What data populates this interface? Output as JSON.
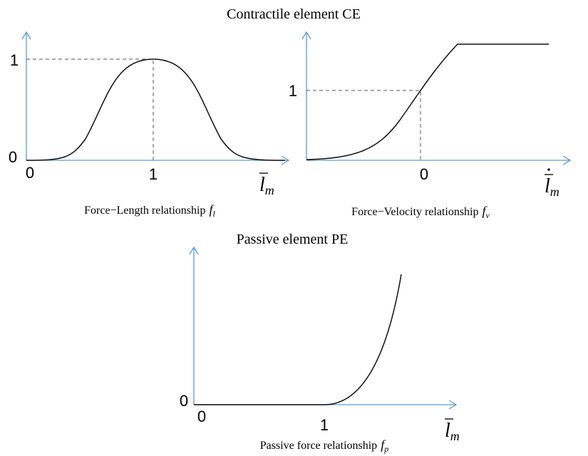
{
  "titles": [
    "Contractile element CE",
    "Passive element PE"
  ],
  "panels": [
    {
      "y_ticks": [
        "1",
        "0"
      ],
      "x_ticks": [
        "0",
        "1"
      ],
      "axis_label": {
        "base": "l",
        "sub": "m"
      },
      "caption": {
        "text": "Force−Length relationship",
        "symbol": "f",
        "sub": "l"
      }
    },
    {
      "y_ticks": [
        "1"
      ],
      "x_ticks": [
        "0"
      ],
      "axis_label": {
        "base": "l",
        "sub": "m"
      },
      "caption": {
        "text": "Force−Velocity relationship",
        "symbol": "f",
        "sub": "v"
      }
    },
    {
      "y_ticks": [
        "0"
      ],
      "x_ticks": [
        "0",
        "1"
      ],
      "axis_label": {
        "base": "l",
        "sub": "m"
      },
      "caption": {
        "text": "Passive force relationship",
        "symbol": "f",
        "sub": "p"
      }
    }
  ]
}
